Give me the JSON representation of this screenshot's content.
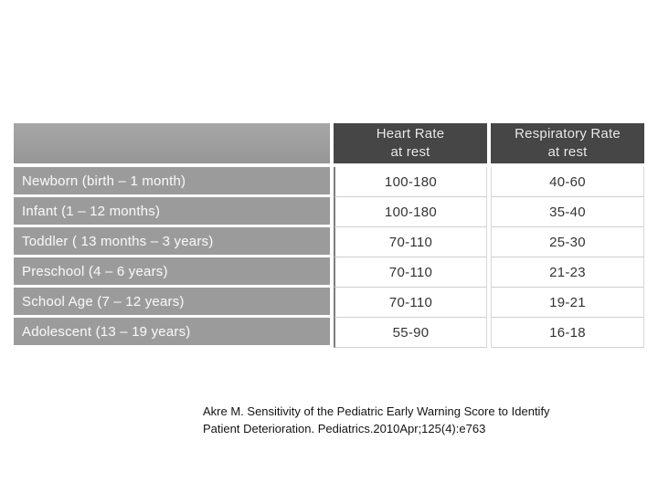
{
  "table": {
    "colors": {
      "header_bg": "#464646",
      "header_text": "#ececec",
      "label_bg": "#9b9b9b",
      "label_text": "#f6f6f6",
      "value_text": "#333333",
      "grid_line": "#cfcfcf"
    },
    "columns": [
      {
        "title": "Heart Rate",
        "subtitle": "at rest"
      },
      {
        "title": "Respiratory Rate",
        "subtitle": "at rest"
      }
    ],
    "rows": [
      {
        "label": "Newborn (birth – 1 month)",
        "heart_rate": "100-180",
        "respiratory_rate": "40-60"
      },
      {
        "label": "Infant (1 – 12 months)",
        "heart_rate": "100-180",
        "respiratory_rate": "35-40"
      },
      {
        "label": "Toddler ( 13 months – 3 years)",
        "heart_rate": "70-110",
        "respiratory_rate": "25-30"
      },
      {
        "label": "Preschool (4 – 6 years)",
        "heart_rate": "70-110",
        "respiratory_rate": "21-23"
      },
      {
        "label": "School Age (7 – 12 years)",
        "heart_rate": "70-110",
        "respiratory_rate": "19-21"
      },
      {
        "label": "Adolescent (13 – 19 years)",
        "heart_rate": "55-90",
        "respiratory_rate": "16-18"
      }
    ]
  },
  "citation": {
    "line1": "Akre M. Sensitivity of the Pediatric Early Warning Score to Identify",
    "line2": "Patient Deterioration. Pediatrics.2010Apr;125(4):e763"
  }
}
